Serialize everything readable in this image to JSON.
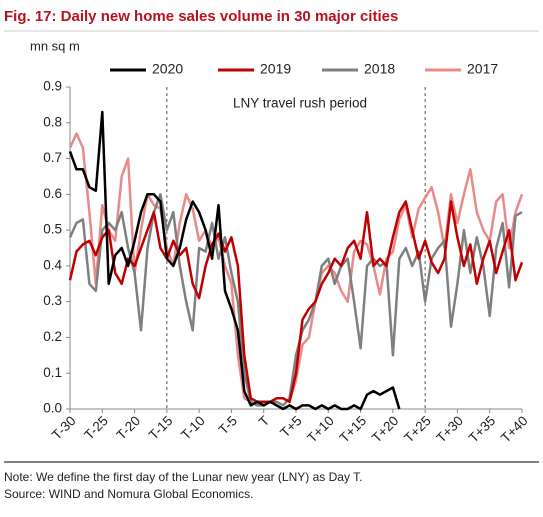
{
  "chart_data": {
    "type": "line",
    "title": "Fig. 17: Daily new home sales volume in 30 major cities",
    "y_axis_label": "mn sq m",
    "annotation": "LNY travel rush period",
    "reference_lines_x": [
      -15,
      25
    ],
    "notes": [
      "Note: We define the first day of the Lunar new year (LNY) as Day T.",
      "Source: WIND and Nomura Global Economics."
    ],
    "x": [
      -30,
      -29,
      -28,
      -27,
      -26,
      -25,
      -24,
      -23,
      -22,
      -21,
      -20,
      -19,
      -18,
      -17,
      -16,
      -15,
      -14,
      -13,
      -12,
      -11,
      -10,
      -9,
      -8,
      -7,
      -6,
      -5,
      -4,
      -3,
      -2,
      -1,
      0,
      1,
      2,
      3,
      4,
      5,
      6,
      7,
      8,
      9,
      10,
      11,
      12,
      13,
      14,
      15,
      16,
      17,
      18,
      19,
      20,
      21,
      22,
      23,
      24,
      25,
      26,
      27,
      28,
      29,
      30,
      31,
      32,
      33,
      34,
      35,
      36,
      37,
      38,
      39,
      40
    ],
    "xlim": [
      -30,
      40
    ],
    "xticks": [
      {
        "value": -30,
        "label": "T-30"
      },
      {
        "value": -25,
        "label": "T-25"
      },
      {
        "value": -20,
        "label": "T-20"
      },
      {
        "value": -15,
        "label": "T-15"
      },
      {
        "value": -10,
        "label": "T-10"
      },
      {
        "value": -5,
        "label": "T-5"
      },
      {
        "value": 0,
        "label": "T"
      },
      {
        "value": 5,
        "label": "T+5"
      },
      {
        "value": 10,
        "label": "T+10"
      },
      {
        "value": 15,
        "label": "T+15"
      },
      {
        "value": 20,
        "label": "T+20"
      },
      {
        "value": 25,
        "label": "T+25"
      },
      {
        "value": 30,
        "label": "T+30"
      },
      {
        "value": 35,
        "label": "T+35"
      },
      {
        "value": 40,
        "label": "T+40"
      }
    ],
    "ylim": [
      0,
      0.9
    ],
    "yticks": [
      {
        "value": 0,
        "label": "0.0"
      },
      0.1,
      0.2,
      0.3,
      0.4,
      0.5,
      0.6,
      0.7,
      0.8,
      0.9
    ],
    "series": [
      {
        "name": "2020",
        "color": "#000000",
        "values": [
          0.72,
          0.67,
          0.67,
          0.62,
          0.61,
          0.83,
          0.35,
          0.43,
          0.45,
          0.4,
          0.47,
          0.55,
          0.6,
          0.6,
          0.58,
          0.42,
          0.4,
          0.45,
          0.53,
          0.58,
          0.55,
          0.5,
          0.42,
          0.57,
          0.33,
          0.28,
          0.22,
          0.05,
          0.01,
          0.02,
          0.01,
          0.02,
          0.01,
          0.0,
          0.01,
          0.0,
          0.01,
          0.01,
          0.0,
          0.01,
          0.0,
          0.01,
          0.0,
          0.0,
          0.01,
          0.0,
          0.04,
          0.05,
          0.04,
          0.05,
          0.06,
          0.0,
          null,
          null,
          null,
          null,
          null,
          null,
          null,
          null,
          null,
          null,
          null,
          null,
          null,
          null,
          null,
          null,
          null,
          null,
          null
        ]
      },
      {
        "name": "2019",
        "color": "#c00000",
        "values": [
          0.36,
          0.44,
          0.46,
          0.47,
          0.43,
          0.48,
          0.5,
          0.38,
          0.35,
          0.42,
          0.4,
          0.45,
          0.5,
          0.55,
          0.45,
          0.42,
          0.47,
          0.43,
          0.45,
          0.35,
          0.31,
          0.4,
          0.46,
          0.49,
          0.44,
          0.48,
          0.4,
          0.15,
          0.03,
          0.02,
          0.02,
          0.02,
          0.03,
          0.03,
          0.02,
          0.1,
          0.25,
          0.28,
          0.3,
          0.35,
          0.38,
          0.42,
          0.4,
          0.45,
          0.47,
          0.42,
          0.55,
          0.4,
          0.42,
          0.4,
          0.48,
          0.55,
          0.58,
          0.5,
          0.42,
          0.47,
          0.41,
          0.38,
          0.42,
          0.58,
          0.48,
          0.4,
          0.46,
          0.35,
          0.42,
          0.47,
          0.38,
          0.44,
          0.5,
          0.36,
          0.41
        ]
      },
      {
        "name": "2018",
        "color": "#7f7f7f",
        "values": [
          0.48,
          0.52,
          0.53,
          0.35,
          0.33,
          0.5,
          0.52,
          0.5,
          0.55,
          0.45,
          0.38,
          0.22,
          0.45,
          0.55,
          0.6,
          0.5,
          0.55,
          0.4,
          0.3,
          0.22,
          0.45,
          0.44,
          0.52,
          0.42,
          0.48,
          0.38,
          0.3,
          0.1,
          0.02,
          0.01,
          0.01,
          0.02,
          0.02,
          0.01,
          0.03,
          0.15,
          0.22,
          0.25,
          0.3,
          0.4,
          0.42,
          0.35,
          0.4,
          0.42,
          0.3,
          0.17,
          0.4,
          0.42,
          0.4,
          0.41,
          0.15,
          0.42,
          0.45,
          0.4,
          0.44,
          0.3,
          0.42,
          0.45,
          0.47,
          0.23,
          0.35,
          0.5,
          0.38,
          0.48,
          0.4,
          0.26,
          0.45,
          0.52,
          0.34,
          0.54,
          0.55
        ]
      },
      {
        "name": "2017",
        "color": "#e8898a",
        "values": [
          0.73,
          0.77,
          0.73,
          0.55,
          0.35,
          0.57,
          0.5,
          0.47,
          0.65,
          0.7,
          0.38,
          0.5,
          0.6,
          0.57,
          0.56,
          0.45,
          0.4,
          0.52,
          0.6,
          0.56,
          0.47,
          0.5,
          0.45,
          0.48,
          0.4,
          0.35,
          0.15,
          0.03,
          0.02,
          0.01,
          0.02,
          0.02,
          0.03,
          0.03,
          0.02,
          0.08,
          0.18,
          0.2,
          0.3,
          0.38,
          0.4,
          0.38,
          0.33,
          0.3,
          0.44,
          0.47,
          0.46,
          0.4,
          0.32,
          0.42,
          0.44,
          0.53,
          0.57,
          0.48,
          0.56,
          0.59,
          0.62,
          0.55,
          0.45,
          0.6,
          0.52,
          0.6,
          0.67,
          0.55,
          0.5,
          0.47,
          0.58,
          0.6,
          0.45,
          0.55,
          0.6
        ]
      }
    ]
  }
}
